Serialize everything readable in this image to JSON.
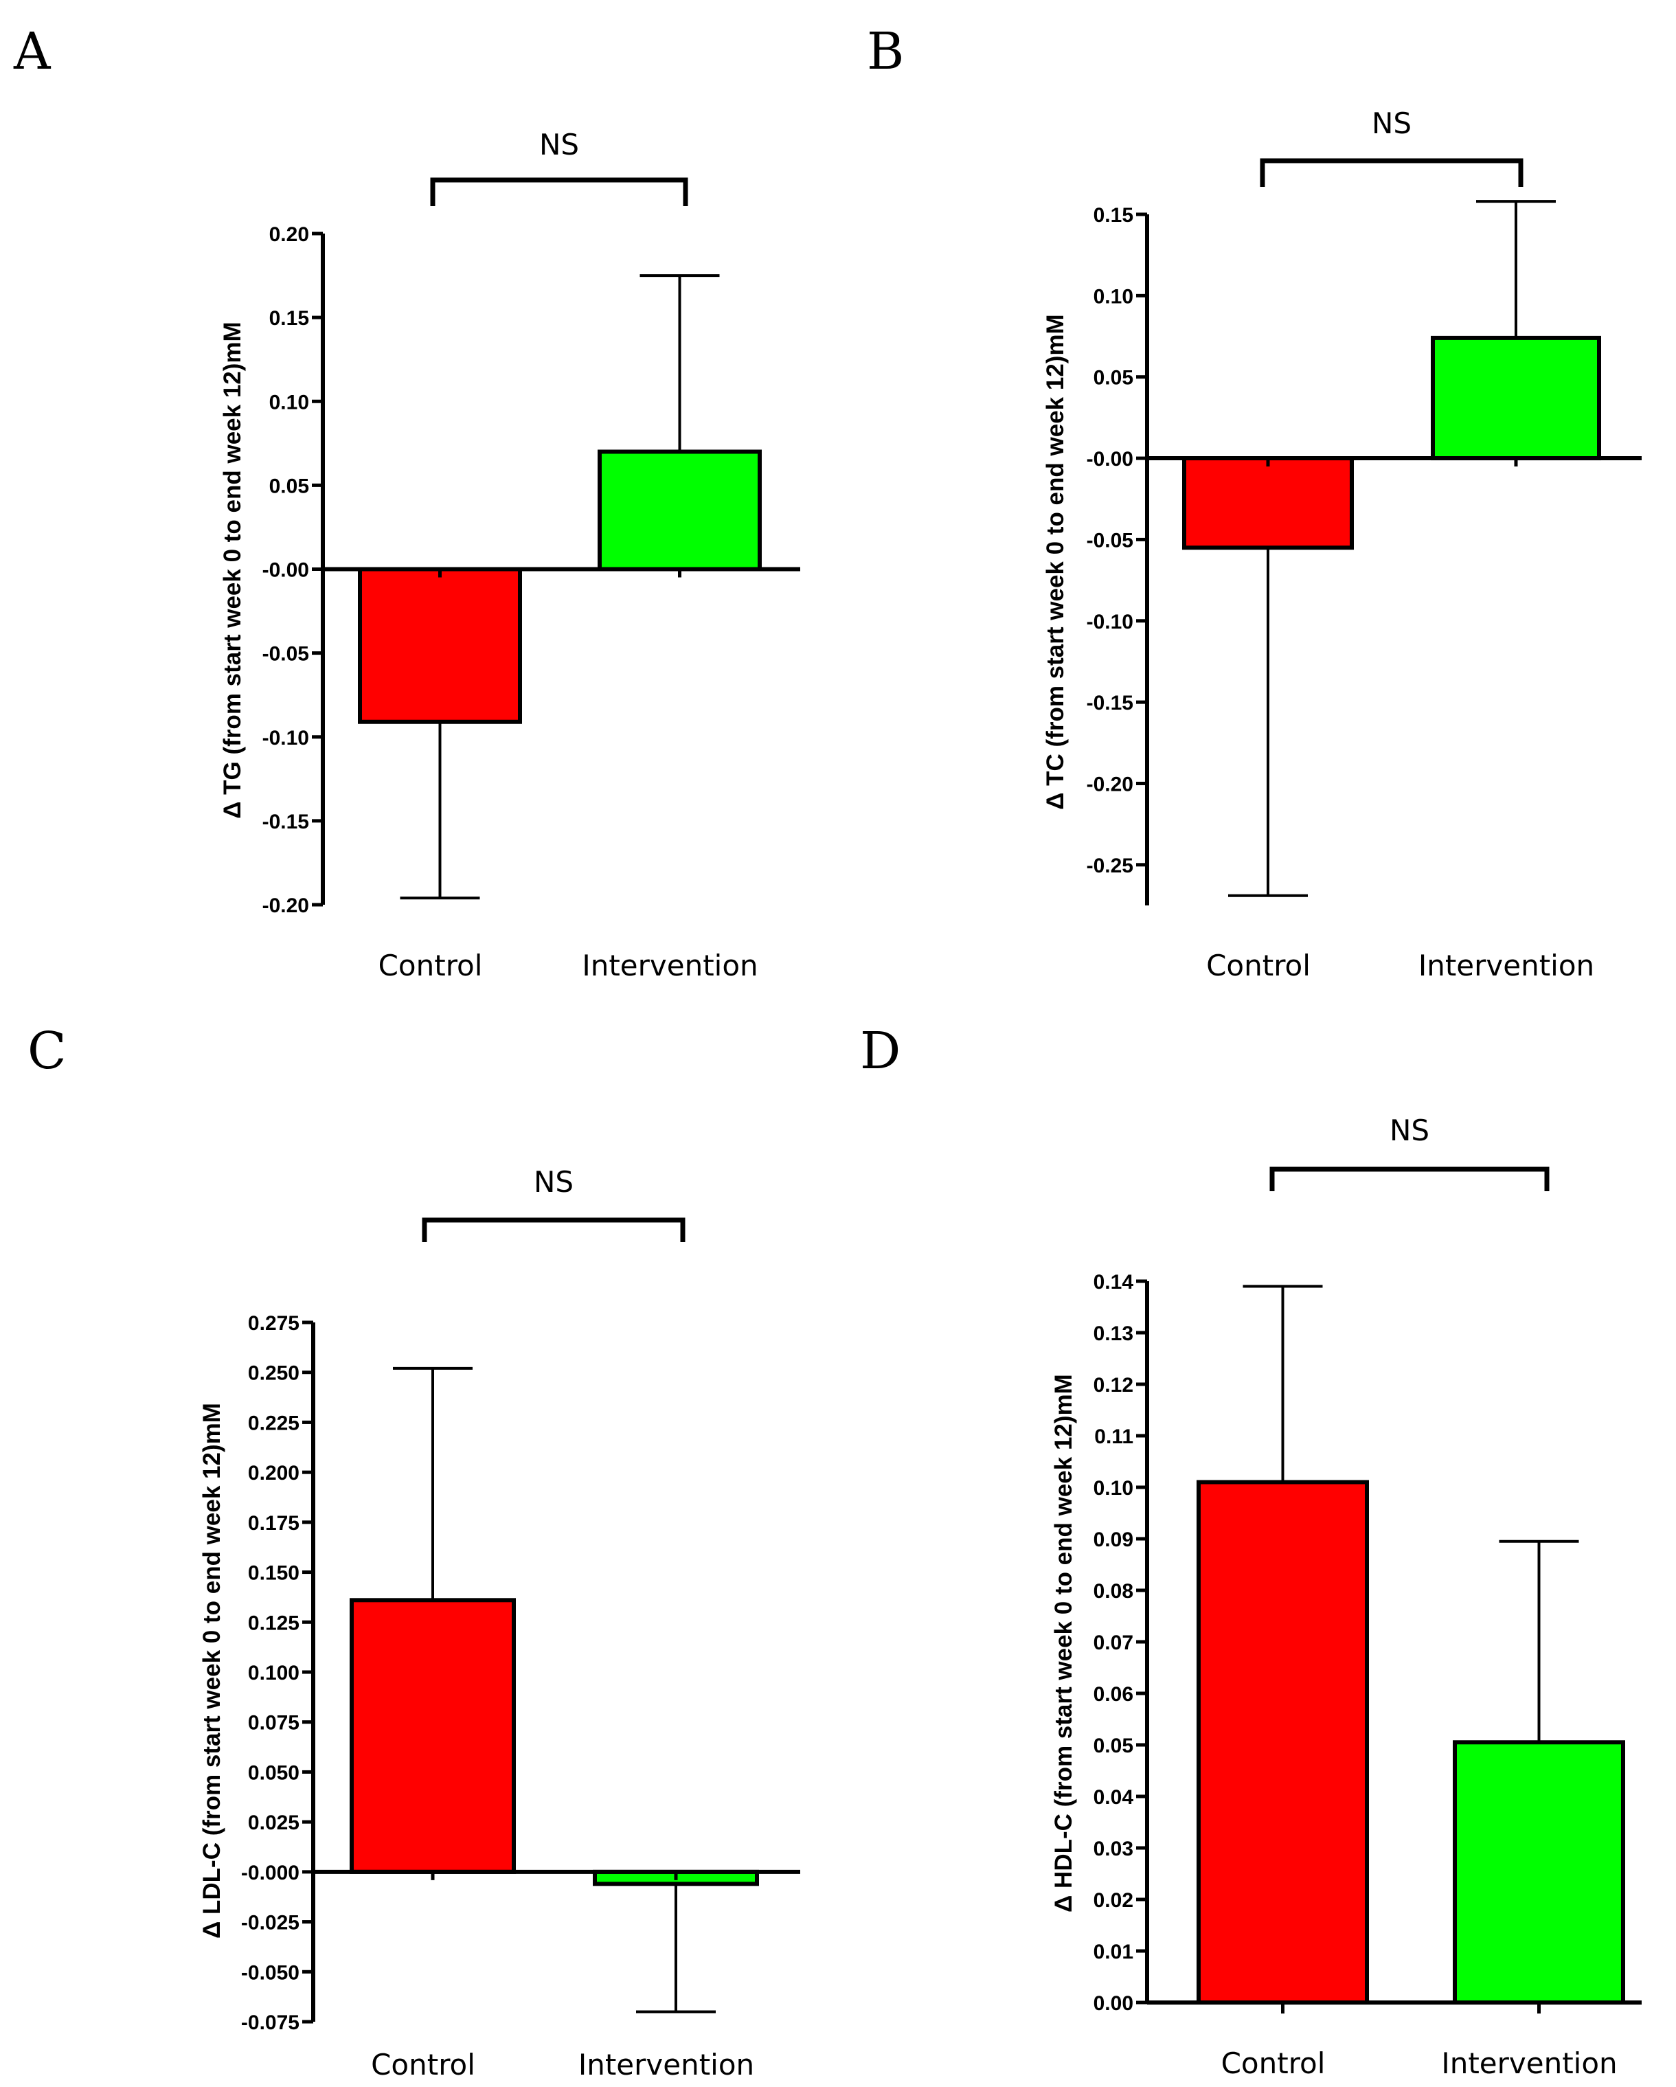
{
  "figure": {
    "colors": {
      "control": "#ff0000",
      "intervention": "#00ff00",
      "axis": "#000000"
    }
  },
  "chart_data": [
    {
      "id": "A",
      "panel_label": "A",
      "type": "bar",
      "title": "",
      "categories": [
        "Control",
        "Intervention"
      ],
      "values": [
        -0.091,
        0.07
      ],
      "errors": [
        0.105,
        0.105
      ],
      "ylabel": "Δ TG (from start week 0 to end week 12)mM",
      "xlabel": "",
      "ylim": [
        -0.2,
        0.2
      ],
      "yticks": [
        0.2,
        0.15,
        0.1,
        0.05,
        0.0,
        -0.05,
        -0.1,
        -0.15,
        -0.2
      ],
      "ytick_labels": [
        "0.20",
        "0.15",
        "0.10",
        "0.05",
        "-0.00",
        "-0.05",
        "-0.10",
        "-0.15",
        "-0.20"
      ],
      "significance": "NS"
    },
    {
      "id": "B",
      "panel_label": "B",
      "type": "bar",
      "title": "",
      "categories": [
        "Control",
        "Intervention"
      ],
      "values": [
        -0.055,
        0.074
      ],
      "errors": [
        0.214,
        0.084
      ],
      "ylabel": "Δ TC (from start week 0 to end week 12)mM",
      "xlabel": "",
      "ylim": [
        -0.275,
        0.15
      ],
      "yticks": [
        0.15,
        0.1,
        0.05,
        0.0,
        -0.05,
        -0.1,
        -0.15,
        -0.2,
        -0.25
      ],
      "ytick_labels": [
        "0.15",
        "0.10",
        "0.05",
        "-0.00",
        "-0.05",
        "-0.10",
        "-0.15",
        "-0.20",
        "-0.25"
      ],
      "significance": "NS"
    },
    {
      "id": "C",
      "panel_label": "C",
      "type": "bar",
      "title": "",
      "categories": [
        "Control",
        "Intervention"
      ],
      "values": [
        0.136,
        -0.006
      ],
      "errors": [
        0.116,
        0.064
      ],
      "ylabel": "Δ LDL-C (from start week 0 to end week 12)mM",
      "xlabel": "",
      "ylim": [
        -0.075,
        0.275
      ],
      "yticks": [
        0.275,
        0.25,
        0.225,
        0.2,
        0.175,
        0.15,
        0.125,
        0.1,
        0.075,
        0.05,
        0.025,
        0.0,
        -0.025,
        -0.05,
        -0.075
      ],
      "ytick_labels": [
        "0.275",
        "0.250",
        "0.225",
        "0.200",
        "0.175",
        "0.150",
        "0.125",
        "0.100",
        "0.075",
        "0.050",
        "0.025",
        "-0.000",
        "-0.025",
        "-0.050",
        "-0.075"
      ],
      "significance": "NS"
    },
    {
      "id": "D",
      "panel_label": "D",
      "type": "bar",
      "title": "",
      "categories": [
        "Control",
        "Intervention"
      ],
      "values": [
        0.101,
        0.0505
      ],
      "errors": [
        0.038,
        0.039
      ],
      "ylabel": "Δ HDL-C (from start week 0 to end week 12)mM",
      "xlabel": "",
      "ylim": [
        0.0,
        0.14
      ],
      "yticks": [
        0.14,
        0.13,
        0.12,
        0.11,
        0.1,
        0.09,
        0.08,
        0.07,
        0.06,
        0.05,
        0.04,
        0.03,
        0.02,
        0.01,
        0.0
      ],
      "ytick_labels": [
        "0.14",
        "0.13",
        "0.12",
        "0.11",
        "0.10",
        "0.09",
        "0.08",
        "0.07",
        "0.06",
        "0.05",
        "0.04",
        "0.03",
        "0.02",
        "0.01",
        "0.00"
      ],
      "significance": "NS"
    }
  ]
}
